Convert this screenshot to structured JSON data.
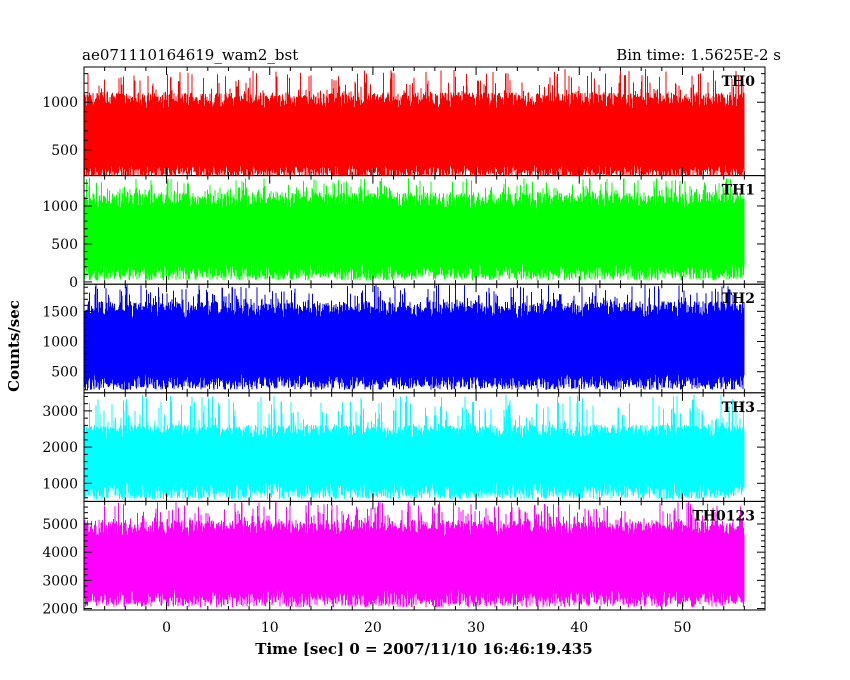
{
  "header": {
    "title": "ae071110164619_wam2_bst",
    "bin_time": "Bin time: 1.5625E-2 s"
  },
  "chart_data": {
    "type": "line",
    "title": "ae071110164619_wam2_bst",
    "subtitle": "Bin time: 1.5625E-2 s",
    "xlabel": "Time [sec] 0 = 2007/11/10 16:46:19.435",
    "ylabel": "Counts/sec",
    "xlim": [
      -8,
      58
    ],
    "x_ticks": [
      0,
      10,
      20,
      30,
      40,
      50
    ],
    "x_tick_labels": [
      "0",
      "10",
      "20",
      "30",
      "40",
      "50"
    ],
    "x_data_range": [
      -8,
      56
    ],
    "grid": false,
    "panels": [
      {
        "name": "TH0",
        "color": "#ff0000",
        "ylim": [
          230,
          1370
        ],
        "y_ticks": [
          500,
          1000
        ],
        "y_tick_labels": [
          "500",
          "1000"
        ],
        "signal_range": [
          200,
          1350
        ],
        "typical_range": [
          300,
          1000
        ]
      },
      {
        "name": "TH1",
        "color": "#00ff00",
        "ylim": [
          -30,
          1400
        ],
        "y_ticks": [
          0,
          500,
          1000
        ],
        "y_tick_labels": [
          "0",
          "500",
          "1000"
        ],
        "signal_range": [
          20,
          1370
        ],
        "typical_range": [
          180,
          1050
        ]
      },
      {
        "name": "TH2",
        "color": "#0000ff",
        "ylim": [
          150,
          1950
        ],
        "y_ticks": [
          500,
          1000,
          1500
        ],
        "y_tick_labels": [
          "500",
          "1000",
          "1500"
        ],
        "signal_range": [
          200,
          1950
        ],
        "typical_range": [
          380,
          1500
        ]
      },
      {
        "name": "TH3",
        "color": "#00ffff",
        "ylim": [
          500,
          3500
        ],
        "y_ticks": [
          1000,
          2000,
          3000
        ],
        "y_tick_labels": [
          "1000",
          "2000",
          "3000"
        ],
        "signal_range": [
          560,
          3450
        ],
        "typical_range": [
          900,
          2400
        ]
      },
      {
        "name": "TH0123",
        "color": "#ff00ff",
        "ylim": [
          1950,
          5800
        ],
        "y_ticks": [
          2000,
          3000,
          4000,
          5000
        ],
        "y_tick_labels": [
          "2000",
          "3000",
          "4000",
          "5000"
        ],
        "signal_range": [
          2050,
          5800
        ],
        "typical_range": [
          2500,
          4800
        ]
      }
    ]
  }
}
